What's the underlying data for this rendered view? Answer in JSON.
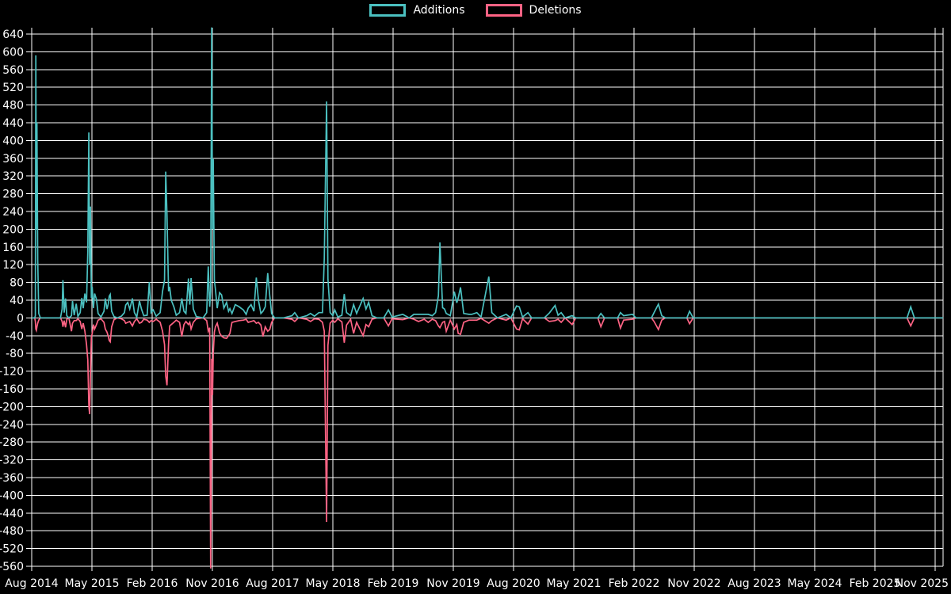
{
  "page": {
    "background": "#000000",
    "grid_color": "#ffffff",
    "text_color": "#ffffff"
  },
  "legend": {
    "items": [
      {
        "label": "Additions",
        "color": "#4BC0C0"
      },
      {
        "label": "Deletions",
        "color": "#FF6384"
      }
    ]
  },
  "chart_data": {
    "type": "line",
    "title": "",
    "xlabel": "",
    "ylabel": "",
    "grid": true,
    "legend_position": "top-center",
    "x_unit": "months since Aug 2014",
    "x_tick_labels": [
      "Aug 2014",
      "May 2015",
      "Feb 2016",
      "Nov 2016",
      "Aug 2017",
      "May 2018",
      "Feb 2019",
      "Nov 2019",
      "Aug 2020",
      "May 2021",
      "Feb 2022",
      "Nov 2022",
      "Aug 2023",
      "May 2024",
      "Feb 2025",
      "Nov 2025"
    ],
    "x_tick_months": [
      0,
      9,
      18,
      27,
      36,
      45,
      54,
      63,
      72,
      81,
      90,
      99,
      108,
      117,
      126,
      135
    ],
    "xlim": [
      0,
      136.2
    ],
    "ylim": [
      -560,
      640
    ],
    "y_tick_step": 40,
    "clipped_peaks": {
      "additions_nov_2016": "above 640 (off-scale)",
      "deletions_nov_2016": "below -560 (off-scale)"
    },
    "series": [
      {
        "name": "Additions",
        "color": "#4BC0C0",
        "value_index": 1
      },
      {
        "name": "Deletions",
        "color": "#FF6384",
        "value_index": 2
      }
    ],
    "points": [
      [
        0,
        0,
        0
      ],
      [
        0.45,
        0,
        0
      ],
      [
        0.55,
        5,
        -8
      ],
      [
        0.62,
        592,
        -25
      ],
      [
        0.7,
        200,
        -28
      ],
      [
        0.78,
        440,
        -20
      ],
      [
        0.9,
        130,
        -12
      ],
      [
        1.05,
        10,
        -5
      ],
      [
        1.3,
        0,
        0
      ],
      [
        2.5,
        0,
        0
      ],
      [
        4.3,
        0,
        0
      ],
      [
        4.55,
        20,
        -8
      ],
      [
        4.67,
        85,
        -20
      ],
      [
        4.85,
        12,
        -6
      ],
      [
        5.06,
        44,
        -21
      ],
      [
        5.25,
        5,
        -3
      ],
      [
        5.55,
        0,
        0
      ],
      [
        5.95,
        5,
        -30
      ],
      [
        6.1,
        38,
        -12
      ],
      [
        6.35,
        6,
        -6
      ],
      [
        6.65,
        32,
        -6
      ],
      [
        6.9,
        3,
        -2
      ],
      [
        7.25,
        12,
        -8
      ],
      [
        7.48,
        45,
        -25
      ],
      [
        7.7,
        22,
        -12
      ],
      [
        7.95,
        55,
        -30
      ],
      [
        8.2,
        35,
        -60
      ],
      [
        8.38,
        150,
        -95
      ],
      [
        8.54,
        418,
        -199
      ],
      [
        8.66,
        120,
        -217
      ],
      [
        8.77,
        251,
        -130
      ],
      [
        8.92,
        45,
        -42
      ],
      [
        9.03,
        70,
        -36
      ],
      [
        9.22,
        22,
        -15
      ],
      [
        9.4,
        55,
        -25
      ],
      [
        9.68,
        42,
        -15
      ],
      [
        9.92,
        10,
        -5
      ],
      [
        10.35,
        2,
        -2
      ],
      [
        10.8,
        15,
        -10
      ],
      [
        11.0,
        44,
        -25
      ],
      [
        11.25,
        20,
        -32
      ],
      [
        11.45,
        32,
        -42
      ],
      [
        11.58,
        49,
        -51
      ],
      [
        11.73,
        53,
        -54
      ],
      [
        11.95,
        15,
        -20
      ],
      [
        12.3,
        3,
        -4
      ],
      [
        12.8,
        0,
        0
      ],
      [
        13.4,
        4,
        -2
      ],
      [
        13.85,
        12,
        -6
      ],
      [
        14.05,
        29,
        -12
      ],
      [
        14.35,
        35,
        -10
      ],
      [
        14.65,
        20,
        -8
      ],
      [
        15.05,
        44,
        -18
      ],
      [
        15.35,
        12,
        -8
      ],
      [
        15.7,
        2,
        -2
      ],
      [
        16.1,
        38,
        -12
      ],
      [
        16.4,
        20,
        -10
      ],
      [
        16.75,
        5,
        -3
      ],
      [
        17.25,
        6,
        -5
      ],
      [
        17.57,
        81,
        -10
      ],
      [
        17.85,
        12,
        -6
      ],
      [
        18.15,
        18,
        -8
      ],
      [
        18.6,
        4,
        -3
      ],
      [
        19.2,
        12,
        -10
      ],
      [
        19.55,
        60,
        -30
      ],
      [
        19.85,
        85,
        -60
      ],
      [
        20.02,
        330,
        -131
      ],
      [
        20.22,
        233,
        -152
      ],
      [
        20.45,
        60,
        -58
      ],
      [
        20.62,
        70,
        -18
      ],
      [
        20.85,
        40,
        -15
      ],
      [
        21.25,
        25,
        -10
      ],
      [
        21.6,
        6,
        -5
      ],
      [
        22.1,
        12,
        -10
      ],
      [
        22.43,
        44,
        -42
      ],
      [
        22.75,
        15,
        -15
      ],
      [
        23.05,
        10,
        -8
      ],
      [
        23.42,
        89,
        -15
      ],
      [
        23.62,
        30,
        -10
      ],
      [
        23.82,
        90,
        -25
      ],
      [
        24.15,
        20,
        -10
      ],
      [
        24.6,
        3,
        -2
      ],
      [
        25.6,
        0,
        0
      ],
      [
        26.15,
        12,
        -6
      ],
      [
        26.38,
        116,
        -30
      ],
      [
        26.6,
        25,
        -22
      ],
      [
        26.74,
        60,
        -565
      ],
      [
        26.89,
        655,
        -92
      ],
      [
        27.02,
        200,
        -174
      ],
      [
        27.13,
        358,
        -80
      ],
      [
        27.3,
        85,
        -32
      ],
      [
        27.45,
        65,
        -20
      ],
      [
        27.72,
        22,
        -12
      ],
      [
        28.08,
        57,
        -34
      ],
      [
        28.37,
        52,
        -41
      ],
      [
        28.72,
        22,
        -45
      ],
      [
        29.12,
        35,
        -46
      ],
      [
        29.42,
        15,
        -40
      ],
      [
        29.62,
        21,
        -35
      ],
      [
        29.92,
        10,
        -10
      ],
      [
        30.42,
        30,
        -8
      ],
      [
        31.0,
        25,
        -6
      ],
      [
        31.63,
        18,
        -5
      ],
      [
        32.05,
        8,
        -3
      ],
      [
        32.35,
        22,
        -10
      ],
      [
        32.78,
        30,
        -8
      ],
      [
        33.2,
        15,
        -6
      ],
      [
        33.56,
        91,
        -12
      ],
      [
        33.88,
        40,
        -10
      ],
      [
        34.25,
        10,
        -16
      ],
      [
        34.55,
        15,
        -42
      ],
      [
        34.9,
        25,
        -20
      ],
      [
        35.26,
        101,
        -30
      ],
      [
        35.57,
        50,
        -26
      ],
      [
        35.85,
        10,
        -10
      ],
      [
        36.3,
        0,
        0
      ],
      [
        37.6,
        0,
        0
      ],
      [
        38.9,
        5,
        -3
      ],
      [
        39.3,
        12,
        -8
      ],
      [
        39.85,
        0,
        0
      ],
      [
        41.1,
        5,
        -3
      ],
      [
        41.66,
        10,
        -8
      ],
      [
        42.25,
        4,
        -2
      ],
      [
        42.92,
        12,
        -3
      ],
      [
        43.45,
        12,
        -10
      ],
      [
        43.72,
        135,
        -30
      ],
      [
        44.06,
        488,
        -460
      ],
      [
        44.26,
        88,
        -62
      ],
      [
        44.6,
        12,
        -12
      ],
      [
        45.0,
        5,
        -5
      ],
      [
        45.28,
        18,
        -10
      ],
      [
        45.75,
        2,
        -2
      ],
      [
        46.35,
        6,
        -9
      ],
      [
        46.7,
        54,
        -56
      ],
      [
        47.05,
        12,
        -16
      ],
      [
        47.65,
        5,
        -3
      ],
      [
        48.1,
        30,
        -35
      ],
      [
        48.55,
        10,
        -10
      ],
      [
        49.52,
        44,
        -40
      ],
      [
        49.95,
        20,
        -15
      ],
      [
        50.35,
        35,
        -20
      ],
      [
        50.85,
        5,
        -3
      ],
      [
        51.6,
        0,
        0
      ],
      [
        52.6,
        0,
        0
      ],
      [
        53.3,
        18,
        -18
      ],
      [
        53.85,
        2,
        -2
      ],
      [
        55.45,
        8,
        -4
      ],
      [
        56.4,
        0,
        0
      ],
      [
        57.1,
        8,
        -3
      ],
      [
        57.8,
        8,
        -8
      ],
      [
        58.65,
        8,
        -3
      ],
      [
        59.25,
        8,
        -10
      ],
      [
        59.85,
        5,
        -3
      ],
      [
        60.35,
        12,
        -6
      ],
      [
        60.77,
        50,
        -18
      ],
      [
        61.0,
        170,
        -22
      ],
      [
        61.4,
        23,
        -10
      ],
      [
        61.68,
        20,
        -8
      ],
      [
        61.95,
        10,
        -30
      ],
      [
        62.55,
        5,
        -5
      ],
      [
        63.15,
        59,
        -25
      ],
      [
        63.52,
        34,
        -15
      ],
      [
        63.73,
        45,
        -35
      ],
      [
        64.08,
        69,
        -37
      ],
      [
        64.55,
        10,
        -10
      ],
      [
        65.35,
        8,
        -5
      ],
      [
        65.75,
        8,
        -5
      ],
      [
        66.52,
        12,
        -5
      ],
      [
        67.15,
        2,
        -1
      ],
      [
        68.3,
        93,
        -12
      ],
      [
        68.75,
        12,
        -6
      ],
      [
        69.6,
        0,
        0
      ],
      [
        70.9,
        8,
        -5
      ],
      [
        71.6,
        0,
        0
      ],
      [
        72.45,
        27,
        -25
      ],
      [
        72.85,
        25,
        -27
      ],
      [
        73.35,
        2,
        -2
      ],
      [
        74.15,
        12,
        -14
      ],
      [
        74.7,
        0,
        0
      ],
      [
        76.6,
        0,
        0
      ],
      [
        77.35,
        11,
        -8
      ],
      [
        78.2,
        28,
        -6
      ],
      [
        78.65,
        6,
        -3
      ],
      [
        79.12,
        12,
        -10
      ],
      [
        79.7,
        0,
        0
      ],
      [
        80.75,
        5,
        -15
      ],
      [
        81.3,
        0,
        0
      ],
      [
        84.6,
        0,
        0
      ],
      [
        85.05,
        10,
        -20
      ],
      [
        85.6,
        0,
        0
      ],
      [
        87.55,
        0,
        0
      ],
      [
        87.97,
        12,
        -23
      ],
      [
        88.45,
        5,
        -5
      ],
      [
        89.8,
        8,
        -3
      ],
      [
        90.3,
        0,
        0
      ],
      [
        92.6,
        0,
        0
      ],
      [
        93.0,
        12,
        -8
      ],
      [
        93.65,
        31,
        -26
      ],
      [
        94.15,
        5,
        -5
      ],
      [
        94.7,
        0,
        0
      ],
      [
        97.9,
        0,
        0
      ],
      [
        98.3,
        15,
        -13
      ],
      [
        98.85,
        0,
        0
      ],
      [
        110,
        0,
        0
      ],
      [
        120,
        0,
        0
      ],
      [
        130.8,
        0,
        0
      ],
      [
        131.35,
        25,
        -18
      ],
      [
        131.9,
        0,
        0
      ],
      [
        136.2,
        0,
        0
      ]
    ]
  }
}
